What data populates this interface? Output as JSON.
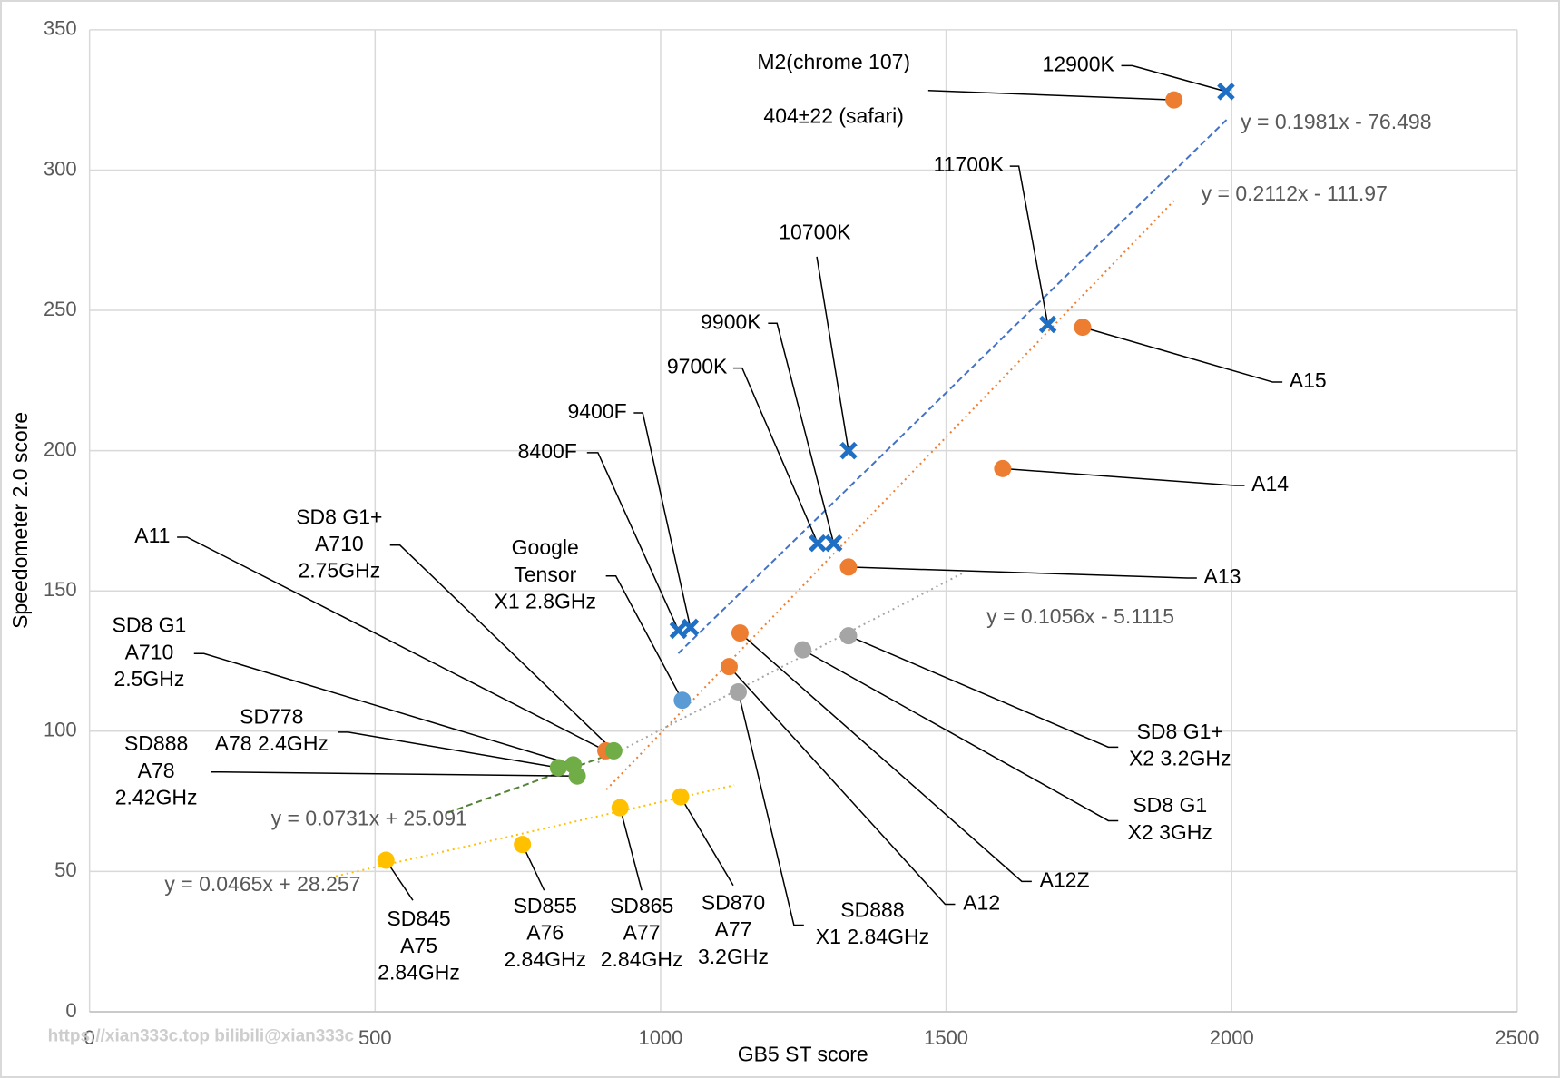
{
  "chart_data": {
    "type": "scatter",
    "x_label": "GB5 ST score",
    "y_label": "Speedometer 2.0 score",
    "xlim": [
      0,
      2500
    ],
    "xticks": [
      0,
      500,
      1000,
      1500,
      2000,
      2500
    ],
    "ylim": [
      0,
      350
    ],
    "yticks": [
      0,
      50,
      100,
      150,
      200,
      250,
      300,
      350
    ],
    "grid": true,
    "watermark": "https://xian333c.top bilibili@xian333c",
    "series": [
      {
        "color": "#1f6fc5",
        "marker": "x",
        "x": [
          1031,
          1052,
          1275,
          1303,
          1329,
          1678,
          1990
        ],
        "values": [
          136,
          137,
          167,
          167,
          200,
          245,
          328
        ],
        "labels": [
          [
            "8400F"
          ],
          [
            "9400F"
          ],
          [
            "9700K"
          ],
          [
            "9900K"
          ],
          [
            "10700K"
          ],
          [
            "11700K"
          ],
          [
            "12900K"
          ]
        ]
      },
      {
        "color": "#ed7d31",
        "marker": "circle",
        "x": [
          904,
          1120,
          1139,
          1329,
          1599,
          1739,
          1899
        ],
        "values": [
          93,
          123,
          135,
          158.5,
          193.6,
          244,
          325
        ],
        "labels": [
          [
            "A11"
          ],
          [
            "A12"
          ],
          [
            "A12Z"
          ],
          [
            "A13"
          ],
          [
            "A14"
          ],
          [
            "A15"
          ],
          [
            "M2(chrome 107)",
            "404±22 (safari)"
          ]
        ]
      },
      {
        "color": "#a5a5a5",
        "marker": "circle",
        "x": [
          1136,
          1249,
          1329
        ],
        "values": [
          114,
          129,
          134
        ],
        "labels": [
          [
            "SD888",
            "X1 2.84GHz"
          ],
          [
            "SD8 G1",
            "X2 3GHz"
          ],
          [
            "SD8 G1+",
            "X2 3.2GHz"
          ]
        ]
      },
      {
        "color": "#5b9bd5",
        "marker": "circle",
        "x": [
          1038
        ],
        "values": [
          111
        ],
        "labels": [
          [
            "Google",
            "Tensor",
            "X1 2.8GHz"
          ]
        ]
      },
      {
        "color": "#70ad47",
        "marker": "circle",
        "x": [
          847,
          821,
          854,
          918
        ],
        "values": [
          88,
          87,
          84,
          93
        ],
        "labels": [
          [
            "SD8 G1",
            "A710",
            "2.5GHz"
          ],
          [
            "SD778",
            "A78 2.4GHz"
          ],
          [
            "SD888",
            "A78",
            "2.42GHz"
          ],
          [
            "SD8 G1+",
            "A710",
            "2.75GHz"
          ]
        ]
      },
      {
        "color": "#ffc000",
        "marker": "circle",
        "x": [
          519,
          758,
          929,
          1035
        ],
        "values": [
          54,
          59.6,
          72.7,
          76.6
        ],
        "labels": [
          [
            "SD845",
            "A75",
            "2.84GHz"
          ],
          [
            "SD855",
            "A76",
            "2.84GHz"
          ],
          [
            "SD865",
            "A77",
            "2.84GHz"
          ],
          [
            "SD870",
            "A77",
            "3.2GHz"
          ]
        ]
      }
    ],
    "trendlines": [
      {
        "label": "y = 0.1981x - 76.498",
        "slope": 0.1981,
        "intercept": -76.498,
        "x_range": [
          1031,
          1991
        ],
        "color": "#4472c4",
        "style": "dashed"
      },
      {
        "label": "y = 0.2112x - 111.97",
        "slope": 0.2112,
        "intercept": -111.97,
        "x_range": [
          905,
          1899
        ],
        "color": "#ed7d31",
        "style": "dotted"
      },
      {
        "label": "y = 0.1056x - 5.1115",
        "slope": 0.1056,
        "intercept": -5.1115,
        "x_range": [
          890,
          1530
        ],
        "color": "#a5a5a5",
        "style": "dotted"
      },
      {
        "label": "y = 0.0731x + 25.091",
        "slope": 0.0731,
        "intercept": 25.091,
        "x_range": [
          627,
          918
        ],
        "color": "#548235",
        "style": "dashed"
      },
      {
        "label": "y = 0.0465x + 28.257",
        "slope": 0.0465,
        "intercept": 28.257,
        "x_range": [
          422,
          1129
        ],
        "color": "#ffc000",
        "style": "dotted"
      }
    ]
  }
}
